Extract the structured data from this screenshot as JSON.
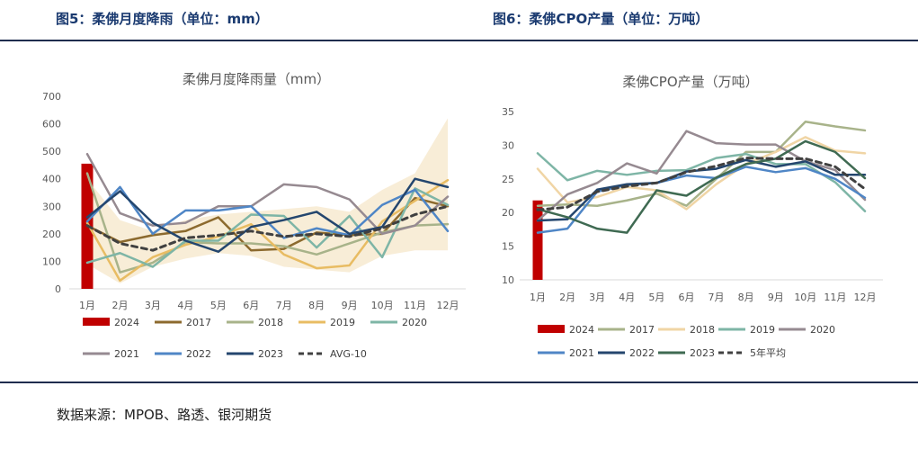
{
  "figures": {
    "fig5_title": "图5：柔佛月度降雨（单位：mm）",
    "fig6_title": "图6：柔佛CPO产量（单位：万吨）"
  },
  "source": "数据来源：MPOB、路透、银河期货",
  "chart_data": [
    {
      "id": "rain",
      "type": "line",
      "title": "柔佛月度降雨量（mm）",
      "categories": [
        "1月",
        "2月",
        "3月",
        "4月",
        "5月",
        "6月",
        "7月",
        "8月",
        "9月",
        "10月",
        "11月",
        "12月"
      ],
      "ylim": [
        0,
        700
      ],
      "yticks": [
        0,
        100,
        200,
        300,
        400,
        500,
        600,
        700
      ],
      "band": {
        "upper": [
          400,
          250,
          210,
          250,
          270,
          280,
          290,
          300,
          280,
          360,
          420,
          620
        ],
        "lower": [
          90,
          20,
          80,
          110,
          130,
          120,
          80,
          70,
          60,
          120,
          140,
          140
        ]
      },
      "series": [
        {
          "name": "2024",
          "color": "#c00000",
          "type": "bar",
          "values": [
            455,
            null,
            null,
            null,
            null,
            null,
            null,
            null,
            null,
            null,
            null,
            null
          ]
        },
        {
          "name": "2017",
          "color": "#8c6a2e",
          "values": [
            230,
            170,
            195,
            210,
            260,
            140,
            145,
            205,
            195,
            200,
            330,
            300
          ]
        },
        {
          "name": "2018",
          "color": "#a8b38a",
          "values": [
            420,
            60,
            95,
            170,
            165,
            165,
            155,
            125,
            165,
            205,
            230,
            235
          ]
        },
        {
          "name": "2019",
          "color": "#e8bc63",
          "values": [
            240,
            30,
            115,
            160,
            190,
            235,
            125,
            75,
            85,
            245,
            320,
            395
          ]
        },
        {
          "name": "2020",
          "color": "#7eb5a6",
          "values": [
            95,
            130,
            80,
            175,
            175,
            270,
            265,
            150,
            265,
            115,
            365,
            305
          ]
        },
        {
          "name": "2021",
          "color": "#968a91",
          "values": [
            490,
            275,
            230,
            240,
            300,
            300,
            380,
            370,
            325,
            200,
            230,
            335
          ]
        },
        {
          "name": "2022",
          "color": "#4f86c6",
          "values": [
            245,
            370,
            200,
            285,
            285,
            300,
            185,
            220,
            195,
            305,
            360,
            210
          ]
        },
        {
          "name": "2023",
          "color": "#24466e",
          "values": [
            260,
            355,
            240,
            175,
            135,
            225,
            250,
            280,
            200,
            225,
            400,
            370
          ]
        },
        {
          "name": "AVG-10",
          "color": "#404040",
          "dashed": true,
          "values": [
            230,
            165,
            140,
            185,
            195,
            210,
            190,
            200,
            190,
            220,
            270,
            300
          ]
        }
      ]
    },
    {
      "id": "cpo",
      "type": "line",
      "title": "柔佛CPO产量（万吨）",
      "categories": [
        "1月",
        "2月",
        "3月",
        "4月",
        "5月",
        "6月",
        "7月",
        "8月",
        "9月",
        "10月",
        "11月",
        "12月"
      ],
      "ylim": [
        10,
        35
      ],
      "yticks": [
        10,
        15,
        20,
        25,
        30,
        35
      ],
      "series": [
        {
          "name": "2024",
          "color": "#c00000",
          "type": "bar",
          "values": [
            21.8,
            null,
            null,
            null,
            null,
            null,
            null,
            null,
            null,
            null,
            null,
            null
          ]
        },
        {
          "name": "2017",
          "color": "#a8b38a",
          "values": [
            21.0,
            21.2,
            21.0,
            21.8,
            22.8,
            21.0,
            25.0,
            29.0,
            29.0,
            33.5,
            32.8,
            32.2
          ]
        },
        {
          "name": "2018",
          "color": "#f0d5a5",
          "values": [
            26.5,
            21.5,
            22.3,
            23.8,
            23.3,
            20.5,
            24.2,
            27.2,
            29.0,
            31.2,
            29.2,
            28.8
          ]
        },
        {
          "name": "2019",
          "color": "#7eb5a6",
          "values": [
            28.8,
            24.8,
            26.2,
            25.6,
            26.2,
            26.3,
            28.1,
            28.7,
            27.2,
            27.2,
            24.5,
            20.2
          ]
        },
        {
          "name": "2020",
          "color": "#968a91",
          "values": [
            18.8,
            22.7,
            24.4,
            27.3,
            25.8,
            32.1,
            30.3,
            30.1,
            30.1,
            27.6,
            26.3,
            21.9
          ]
        },
        {
          "name": "2021",
          "color": "#4f86c6",
          "values": [
            17.0,
            17.6,
            23.1,
            24.1,
            24.4,
            25.5,
            25.1,
            26.8,
            26.0,
            26.6,
            25.0,
            22.2
          ]
        },
        {
          "name": "2022",
          "color": "#24466e",
          "values": [
            18.8,
            19.0,
            23.4,
            24.2,
            24.4,
            26.1,
            26.5,
            27.8,
            26.8,
            27.6,
            25.6,
            25.6
          ]
        },
        {
          "name": "2023",
          "color": "#3f6a52",
          "values": [
            20.5,
            19.3,
            17.6,
            17.0,
            23.3,
            22.5,
            25.2,
            27.2,
            28.0,
            30.6,
            29.0,
            25.1
          ]
        },
        {
          "name": "5年平均",
          "color": "#404040",
          "dashed": true,
          "values": [
            20.4,
            20.8,
            23.1,
            23.9,
            24.4,
            26.0,
            26.9,
            28.1,
            28.0,
            28.0,
            26.8,
            23.5
          ]
        }
      ]
    }
  ]
}
